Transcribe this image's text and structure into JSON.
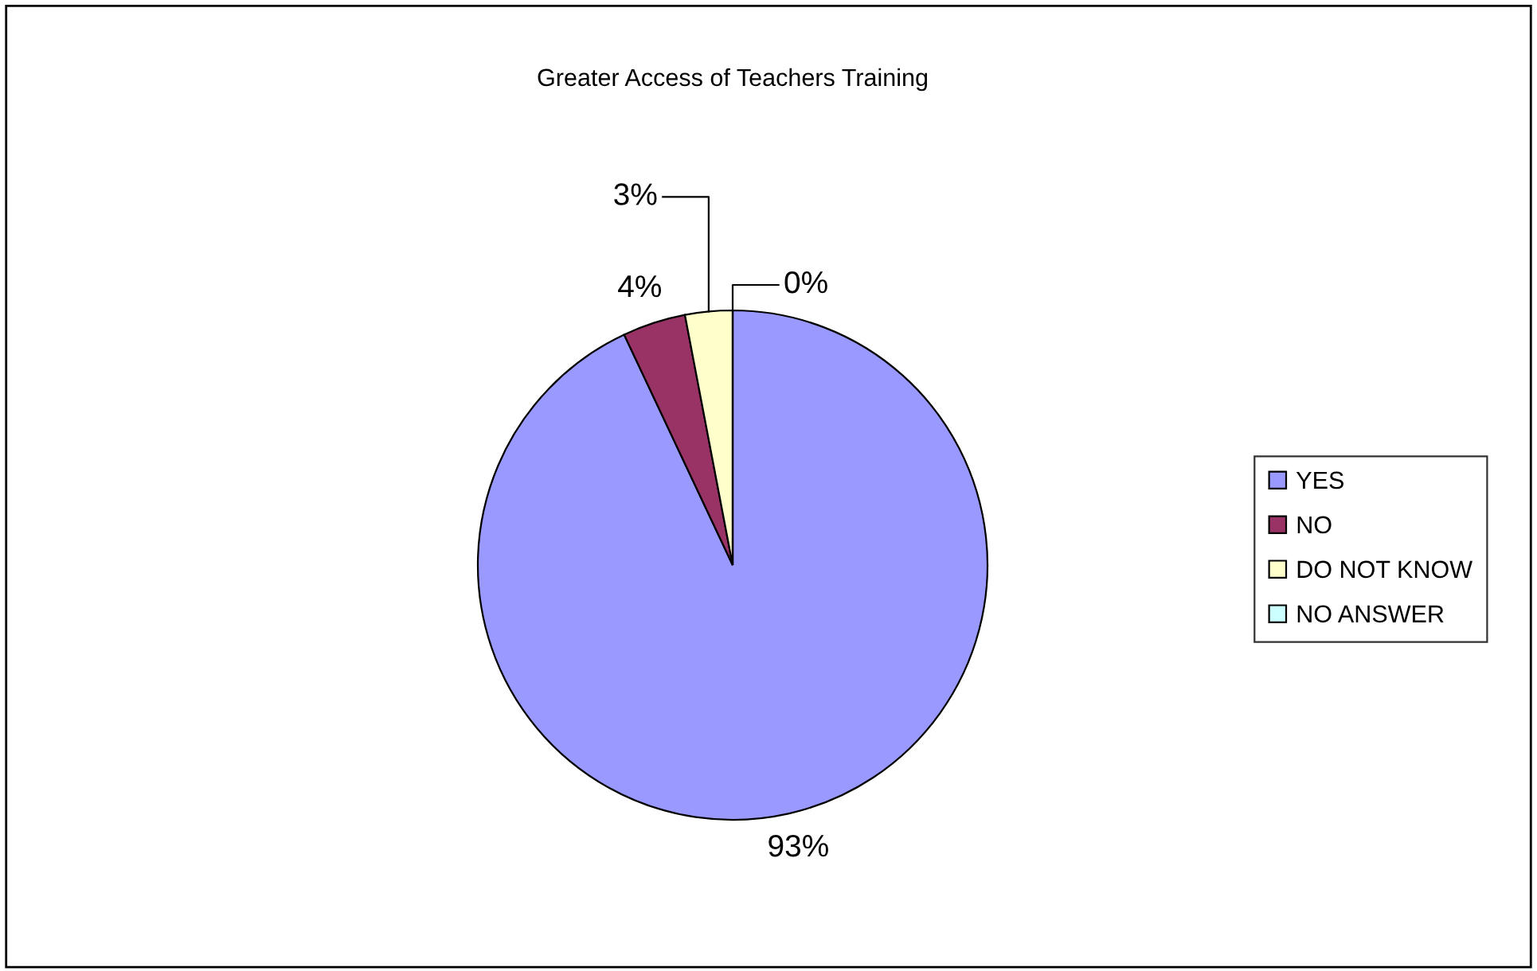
{
  "chart_data": {
    "type": "pie",
    "title": "Greater Access of Teachers Training",
    "categories": [
      "YES",
      "NO",
      "DO NOT KNOW",
      "NO ANSWER"
    ],
    "values": [
      93,
      4,
      3,
      0
    ],
    "colors": [
      "#9999ff",
      "#993366",
      "#ffffcc",
      "#ccffff"
    ],
    "value_labels": [
      "93%",
      "4%",
      "3%",
      "0%"
    ],
    "legend": "right"
  }
}
